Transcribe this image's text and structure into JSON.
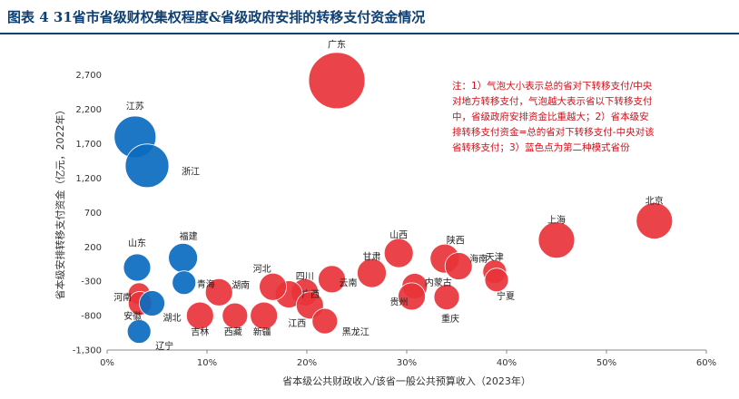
{
  "figure": {
    "title": "图表 4   31省市省级财权集权程度&省级政府安排的转移支付资金情况"
  },
  "colors": {
    "mode1": "#e8333a",
    "mode2": "#0b6bbf",
    "title": "#0d3f73",
    "note": "#d0101a"
  },
  "chart_data": {
    "type": "scatter",
    "xlabel": "省本级公共财政收入/该省一般公共预算收入（2023年）",
    "ylabel": "省本级安排转移支付资金（亿元，2022年）",
    "xlim": [
      0,
      60
    ],
    "ylim": [
      -1300,
      3000
    ],
    "xticks": [
      "0%",
      "10%",
      "20%",
      "30%",
      "40%",
      "50%",
      "60%"
    ],
    "yticks": [
      "-1,300",
      "-800",
      "-300",
      "200",
      "700",
      "1,200",
      "1,700",
      "2,200",
      "2,700"
    ],
    "grid": false,
    "note_lines": [
      "注：1）气泡大小表示总的省对下转移支付/中央",
      "对地方转移支付，气泡越大表示省以下转移支付",
      "中，省级政府安排资金比重越大；2）省本级安",
      "排转移支付资金=总的省对下转移支付-中央对该",
      "省转移支付；3）蓝色点为第二种模式省份"
    ],
    "points": [
      {
        "name": "广东",
        "x": 23.0,
        "y": 2620,
        "size": 31,
        "group": "mode1"
      },
      {
        "name": "北京",
        "x": 54.8,
        "y": 580,
        "size": 20,
        "group": "mode1"
      },
      {
        "name": "上海",
        "x": 45.0,
        "y": 300,
        "size": 20,
        "group": "mode1"
      },
      {
        "name": "山西",
        "x": 29.2,
        "y": 110,
        "size": 16,
        "group": "mode1"
      },
      {
        "name": "甘肃",
        "x": 26.5,
        "y": -180,
        "size": 16,
        "group": "mode1"
      },
      {
        "name": "陕西",
        "x": 33.8,
        "y": 30,
        "size": 16,
        "group": "mode1"
      },
      {
        "name": "海南",
        "x": 35.2,
        "y": -80,
        "size": 15,
        "group": "mode1"
      },
      {
        "name": "天津",
        "x": 38.8,
        "y": -160,
        "size": 13,
        "group": "mode1"
      },
      {
        "name": "宁夏",
        "x": 39.0,
        "y": -280,
        "size": 13,
        "group": "mode1"
      },
      {
        "name": "内蒙古",
        "x": 30.8,
        "y": -370,
        "size": 14,
        "group": "mode1"
      },
      {
        "name": "贵州",
        "x": 30.5,
        "y": -520,
        "size": 15,
        "group": "mode1"
      },
      {
        "name": "重庆",
        "x": 34.0,
        "y": -530,
        "size": 14,
        "group": "mode1"
      },
      {
        "name": "云南",
        "x": 22.5,
        "y": -270,
        "size": 15,
        "group": "mode1"
      },
      {
        "name": "四川",
        "x": 19.8,
        "y": -460,
        "size": 15,
        "group": "mode1"
      },
      {
        "name": "广西",
        "x": 18.2,
        "y": -490,
        "size": 15,
        "group": "mode1"
      },
      {
        "name": "河北",
        "x": 16.6,
        "y": -380,
        "size": 15,
        "group": "mode1"
      },
      {
        "name": "江西",
        "x": 20.3,
        "y": -650,
        "size": 15,
        "group": "mode1"
      },
      {
        "name": "黑龙江",
        "x": 21.8,
        "y": -880,
        "size": 14,
        "group": "mode1"
      },
      {
        "name": "湖南",
        "x": 11.2,
        "y": -460,
        "size": 15,
        "group": "mode1"
      },
      {
        "name": "新疆",
        "x": 15.7,
        "y": -800,
        "size": 15,
        "group": "mode1"
      },
      {
        "name": "西藏",
        "x": 12.8,
        "y": -800,
        "size": 14,
        "group": "mode1"
      },
      {
        "name": "吉林",
        "x": 9.3,
        "y": -800,
        "size": 15,
        "group": "mode1"
      },
      {
        "name": "河南",
        "x": 3.2,
        "y": -480,
        "size": 12,
        "group": "mode1"
      },
      {
        "name": "安徽",
        "x": 3.3,
        "y": -620,
        "size": 13,
        "group": "mode1"
      },
      {
        "name": "江苏",
        "x": 2.8,
        "y": 1800,
        "size": 23,
        "group": "mode2"
      },
      {
        "name": "浙江",
        "x": 4.0,
        "y": 1380,
        "size": 24,
        "group": "mode2"
      },
      {
        "name": "福建",
        "x": 7.6,
        "y": 40,
        "size": 16,
        "group": "mode2"
      },
      {
        "name": "山东",
        "x": 3.0,
        "y": -100,
        "size": 15,
        "group": "mode2"
      },
      {
        "name": "青海",
        "x": 7.7,
        "y": -320,
        "size": 13,
        "group": "mode2"
      },
      {
        "name": "湖北",
        "x": 4.5,
        "y": -620,
        "size": 14,
        "group": "mode2"
      },
      {
        "name": "辽宁",
        "x": 3.2,
        "y": -1030,
        "size": 13,
        "group": "mode2"
      }
    ]
  }
}
